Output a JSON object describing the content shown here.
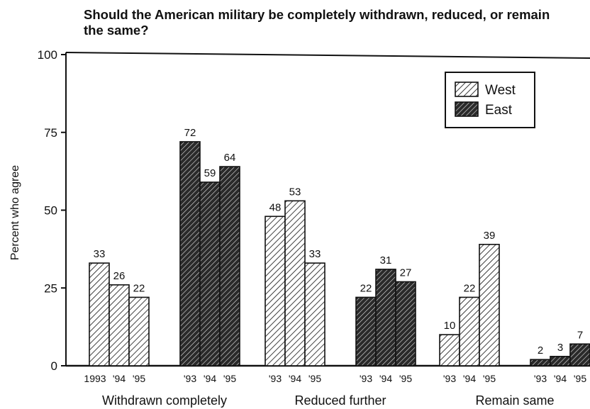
{
  "chart_data": {
    "type": "bar",
    "title": "Should the American military be completely withdrawn, reduced, or remain the same?",
    "ylabel": "Percent who agree",
    "xlabel": "",
    "ylim": [
      0,
      100
    ],
    "yticks": [
      "0",
      "25",
      "50",
      "75",
      "100"
    ],
    "grid": false,
    "legend_position": "top-right",
    "legend": [
      {
        "name": "West",
        "pattern": "light-diagonal-hatch"
      },
      {
        "name": "East",
        "pattern": "dark-diagonal-hatch"
      }
    ],
    "groups": [
      {
        "label": "Withdrawn completely",
        "series": [
          {
            "name": "West",
            "years": [
              "1993",
              "'94",
              "'95"
            ],
            "values": [
              33,
              26,
              22
            ]
          },
          {
            "name": "East",
            "years": [
              "'93",
              "'94",
              "'95"
            ],
            "values": [
              72,
              59,
              64
            ]
          }
        ]
      },
      {
        "label": "Reduced further",
        "series": [
          {
            "name": "West",
            "years": [
              "'93",
              "'94",
              "'95"
            ],
            "values": [
              48,
              53,
              33
            ]
          },
          {
            "name": "East",
            "years": [
              "'93",
              "'94",
              "'95"
            ],
            "values": [
              22,
              31,
              27
            ]
          }
        ]
      },
      {
        "label": "Remain same",
        "series": [
          {
            "name": "West",
            "years": [
              "'93",
              "'94",
              "'95"
            ],
            "values": [
              10,
              22,
              39
            ]
          },
          {
            "name": "East",
            "years": [
              "'93",
              "'94",
              "'95"
            ],
            "values": [
              2,
              3,
              7
            ]
          }
        ]
      }
    ]
  },
  "colors": {
    "ink": "#111111",
    "west_fill": "#ffffff",
    "east_fill": "#2a2a2a"
  }
}
